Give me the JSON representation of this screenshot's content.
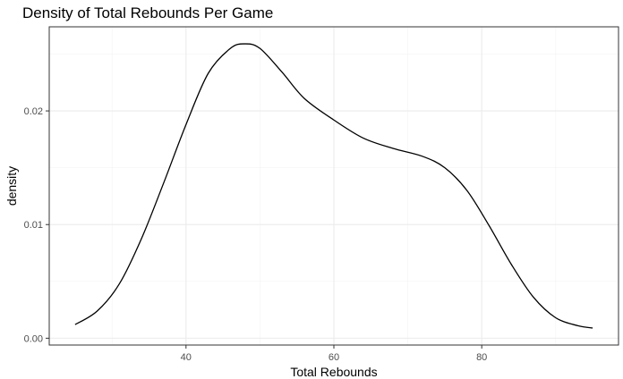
{
  "chart_data": {
    "type": "line",
    "title": "Density of Total Rebounds Per Game",
    "xlabel": "Total Rebounds",
    "ylabel": "density",
    "xlim": [
      21.5,
      98.5
    ],
    "ylim": [
      -0.0006,
      0.0274
    ],
    "x_ticks": [
      40,
      60,
      80
    ],
    "x_tick_labels": [
      "40",
      "60",
      "80"
    ],
    "x_minor_ticks": [
      30,
      50,
      70,
      90
    ],
    "y_ticks": [
      0,
      0.01,
      0.02
    ],
    "y_tick_labels": [
      "0.00",
      "0.01",
      "0.02"
    ],
    "y_minor_ticks": [
      0.005,
      0.015,
      0.025
    ],
    "grid": true,
    "line_color": "#000000",
    "series": [
      {
        "x": [
          25,
          28,
          31,
          34,
          37,
          40,
          43,
          46,
          48,
          50,
          53,
          56,
          60,
          64,
          68,
          72,
          75,
          78,
          81,
          84,
          87,
          90,
          93,
          95
        ],
        "values": [
          0.0012,
          0.0024,
          0.0048,
          0.0088,
          0.0137,
          0.0188,
          0.0233,
          0.0255,
          0.0259,
          0.0255,
          0.0234,
          0.0211,
          0.0192,
          0.0176,
          0.0167,
          0.016,
          0.015,
          0.013,
          0.0099,
          0.0065,
          0.0036,
          0.0018,
          0.0011,
          0.0009
        ]
      }
    ]
  }
}
